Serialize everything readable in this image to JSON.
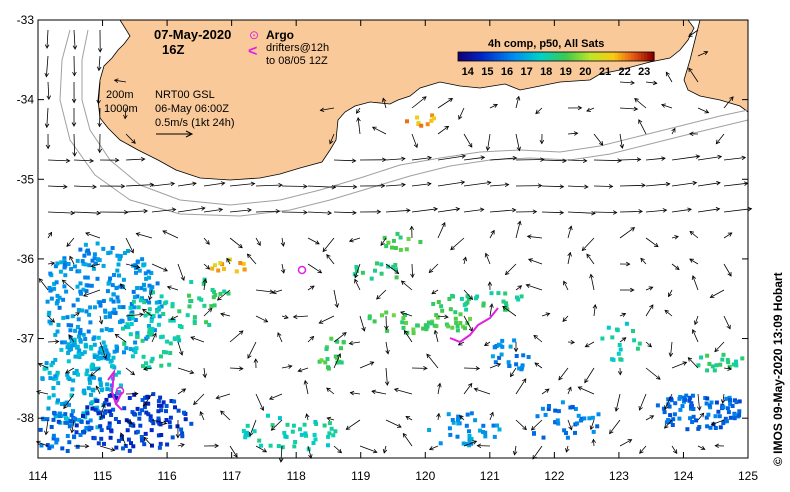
{
  "map": {
    "title_date": "07-May-2020",
    "title_time": "16Z",
    "legend": {
      "argo_symbol": "⊙",
      "argo_label": "Argo",
      "drifter_symbol": "<",
      "drifter_label_line1": "drifters@12h",
      "drifter_label_line2": "to 08/05 12Z"
    },
    "isobaths": {
      "shallow": "200m",
      "deep": "1000m"
    },
    "velocity_info": {
      "line1": "NRT00 GSL",
      "line2": "06-May 06:00Z",
      "scale_label": "0.5m/s (1kt 24h)"
    },
    "colorbar": {
      "title": "4h comp, p50, All Sats",
      "ticks": [
        "14",
        "15",
        "16",
        "17",
        "18",
        "19",
        "20",
        "21",
        "22",
        "23"
      ],
      "min": 13.5,
      "max": 23.5
    },
    "credit": "© IMOS 09-May-2020 13:09 Hobart",
    "axes": {
      "x_ticks": [
        "114",
        "115",
        "116",
        "117",
        "118",
        "119",
        "120",
        "121",
        "122",
        "123",
        "124",
        "125"
      ],
      "y_ticks": [
        "-33",
        "-34",
        "-35",
        "-36",
        "-37",
        "-38"
      ],
      "lon_range": [
        114,
        125
      ],
      "lat_range": [
        -38.5,
        -33
      ]
    },
    "colors": {
      "land": "#f9c99a",
      "coast": "#000000",
      "isobath": "#a0a0a0",
      "argo": "#e020e0",
      "drifter": "#e020e0"
    }
  }
}
